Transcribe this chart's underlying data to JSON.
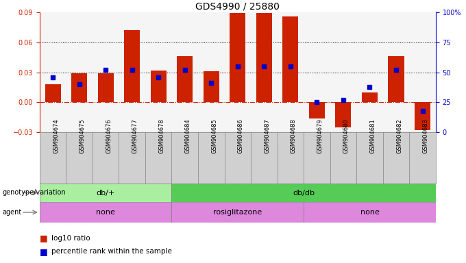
{
  "title": "GDS4990 / 25880",
  "samples": [
    "GSM904674",
    "GSM904675",
    "GSM904676",
    "GSM904677",
    "GSM904678",
    "GSM904684",
    "GSM904685",
    "GSM904686",
    "GSM904687",
    "GSM904688",
    "GSM904679",
    "GSM904680",
    "GSM904681",
    "GSM904682",
    "GSM904683"
  ],
  "log10_ratio": [
    0.018,
    0.029,
    0.029,
    0.072,
    0.032,
    0.046,
    0.031,
    0.089,
    0.089,
    0.086,
    -0.016,
    -0.025,
    0.01,
    0.046,
    -0.028
  ],
  "pct_right": [
    46,
    40,
    52,
    52,
    46,
    52,
    41,
    55,
    55,
    55,
    25,
    27,
    38,
    52,
    18
  ],
  "bar_color": "#cc2200",
  "dot_color": "#0000cc",
  "bg_color": "#ffffff",
  "plot_bg_color": "#f5f5f5",
  "sample_bg_color": "#d0d0d0",
  "ylim_left": [
    -0.03,
    0.09
  ],
  "ylim_right": [
    0,
    100
  ],
  "yticks_left": [
    -0.03,
    0,
    0.03,
    0.06,
    0.09
  ],
  "yticks_right": [
    0,
    25,
    50,
    75,
    100
  ],
  "ytick_labels_right": [
    "0",
    "25",
    "50",
    "75",
    "100%"
  ],
  "genotype_groups": [
    {
      "label": "db/+",
      "start": 0,
      "end": 5,
      "color": "#aaeea0"
    },
    {
      "label": "db/db",
      "start": 5,
      "end": 15,
      "color": "#55cc55"
    }
  ],
  "agent_groups": [
    {
      "label": "none",
      "start": 0,
      "end": 5,
      "color": "#dd88dd"
    },
    {
      "label": "rosiglitazone",
      "start": 5,
      "end": 10,
      "color": "#dd88dd"
    },
    {
      "label": "none",
      "start": 10,
      "end": 15,
      "color": "#dd88dd"
    }
  ],
  "legend_bar_label": "log10 ratio",
  "legend_dot_label": "percentile rank within the sample",
  "tick_fontsize": 7,
  "title_fontsize": 10,
  "label_fontsize": 8,
  "sample_fontsize": 6
}
